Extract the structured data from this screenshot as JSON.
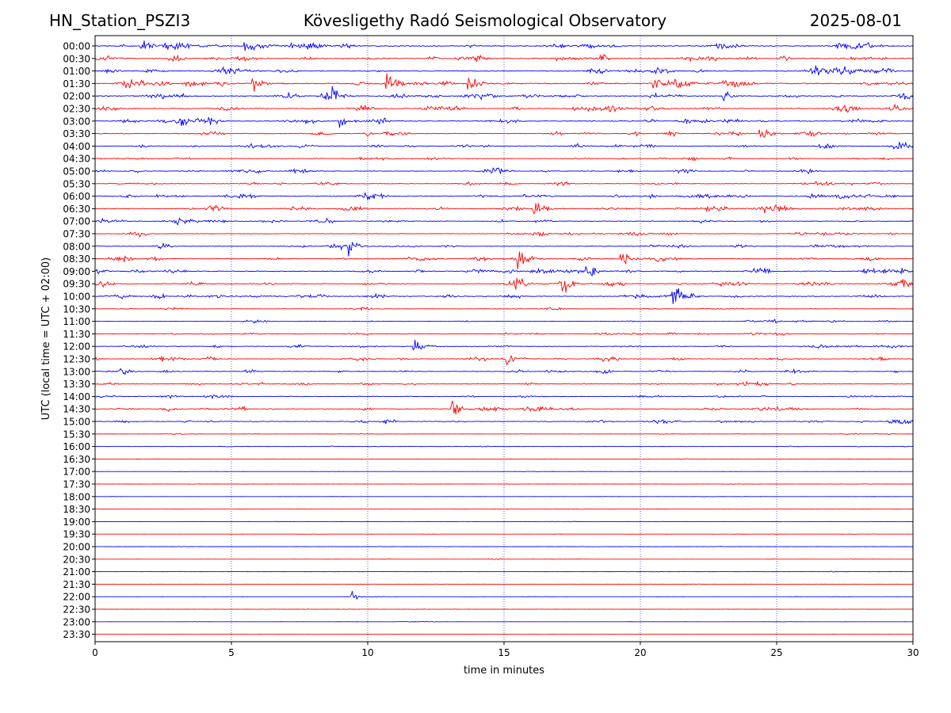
{
  "header": {
    "station": "HN_Station_PSZI3",
    "title": "Kövesligethy Radó Seismological Observatory",
    "date": "2025-08-01"
  },
  "chart_data": {
    "type": "line",
    "subtype": "helicorder",
    "xlabel": "time in minutes",
    "ylabel": "UTC (local time = UTC + 02:00)",
    "xlim": [
      0,
      30
    ],
    "xticks": [
      0,
      5,
      10,
      15,
      20,
      25,
      30
    ],
    "grid": "vertical dotted lines at x ticks",
    "trace_colors": [
      "#0000ff",
      "#ff0000"
    ],
    "color_pattern": "alternating, starting blue",
    "rows": [
      "00:00",
      "00:30",
      "01:00",
      "01:30",
      "02:00",
      "02:30",
      "03:00",
      "03:30",
      "04:00",
      "04:30",
      "05:00",
      "05:30",
      "06:00",
      "06:30",
      "07:00",
      "07:30",
      "08:00",
      "08:30",
      "09:00",
      "09:30",
      "10:00",
      "10:30",
      "11:00",
      "11:30",
      "12:00",
      "12:30",
      "13:00",
      "13:30",
      "14:00",
      "14:30",
      "15:00",
      "15:30",
      "16:00",
      "16:30",
      "17:00",
      "17:30",
      "18:00",
      "18:30",
      "19:00",
      "19:30",
      "20:00",
      "20:30",
      "21:00",
      "21:30",
      "22:00",
      "22:30",
      "23:00",
      "23:30"
    ],
    "relative_activity": [
      0.55,
      0.45,
      0.45,
      0.55,
      0.5,
      0.45,
      0.45,
      0.4,
      0.4,
      0.3,
      0.35,
      0.3,
      0.45,
      0.45,
      0.35,
      0.3,
      0.35,
      0.4,
      0.45,
      0.45,
      0.45,
      0.2,
      0.2,
      0.3,
      0.3,
      0.35,
      0.35,
      0.3,
      0.3,
      0.35,
      0.35,
      0.12,
      0.1,
      0.06,
      0.06,
      0.05,
      0.05,
      0.05,
      0.05,
      0.05,
      0.05,
      0.05,
      0.05,
      0.05,
      0.05,
      0.05,
      0.05,
      0.04
    ],
    "events": [
      {
        "row": "00:00",
        "minute": 1.7,
        "amp": 1.0
      },
      {
        "row": "00:00",
        "minute": 5.5,
        "amp": 0.9
      },
      {
        "row": "01:30",
        "minute": 5.8,
        "amp": 0.9
      },
      {
        "row": "01:30",
        "minute": 10.7,
        "amp": 1.6
      },
      {
        "row": "01:30",
        "minute": 13.7,
        "amp": 0.9
      },
      {
        "row": "01:30",
        "minute": 20.5,
        "amp": 0.8
      },
      {
        "row": "02:00",
        "minute": 8.7,
        "amp": 0.9
      },
      {
        "row": "02:00",
        "minute": 23.0,
        "amp": 0.8
      },
      {
        "row": "03:00",
        "minute": 3.0,
        "amp": 0.8
      },
      {
        "row": "03:00",
        "minute": 9.0,
        "amp": 0.9
      },
      {
        "row": "03:30",
        "minute": 24.4,
        "amp": 1.0
      },
      {
        "row": "06:30",
        "minute": 16.1,
        "amp": 0.9
      },
      {
        "row": "08:00",
        "minute": 9.3,
        "amp": 0.8
      },
      {
        "row": "08:30",
        "minute": 15.5,
        "amp": 0.9
      },
      {
        "row": "08:30",
        "minute": 19.3,
        "amp": 0.8
      },
      {
        "row": "09:00",
        "minute": 18.0,
        "amp": 1.0
      },
      {
        "row": "09:30",
        "minute": 17.1,
        "amp": 1.0
      },
      {
        "row": "10:00",
        "minute": 21.2,
        "amp": 1.3
      },
      {
        "row": "12:00",
        "minute": 11.7,
        "amp": 1.0
      },
      {
        "row": "12:30",
        "minute": 15.1,
        "amp": 0.9
      },
      {
        "row": "14:30",
        "minute": 13.1,
        "amp": 0.9
      },
      {
        "row": "22:00",
        "minute": 9.4,
        "amp": 0.5
      }
    ]
  }
}
